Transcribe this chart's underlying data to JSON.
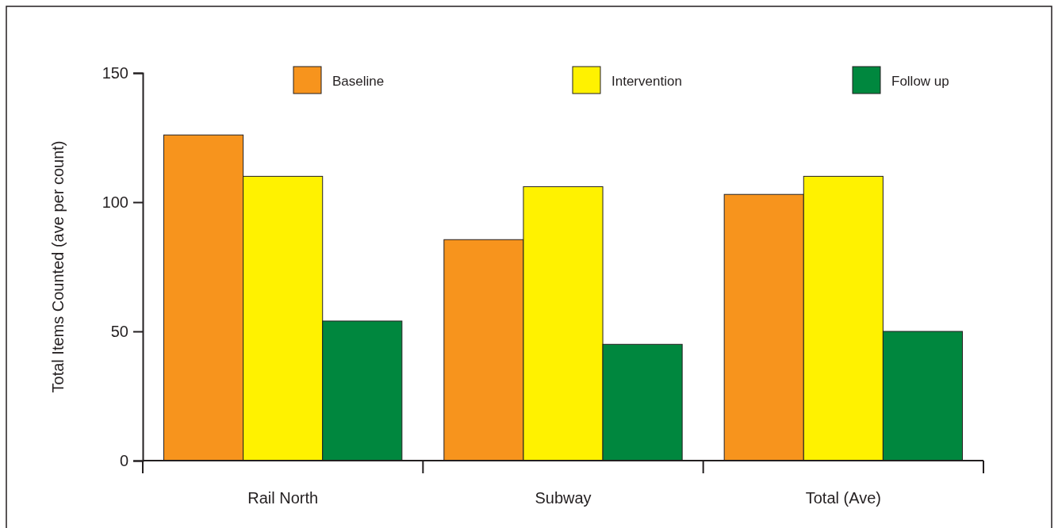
{
  "chart_data": {
    "type": "bar",
    "ylabel": "Total Items Counted (ave per count)",
    "categories": [
      "Rail North",
      "Subway",
      "Total (Ave)"
    ],
    "series": [
      {
        "name": "Baseline",
        "color": "#f7941d",
        "values": [
          126,
          85.5,
          103
        ]
      },
      {
        "name": "Intervention",
        "color": "#fff200",
        "values": [
          110,
          106,
          110
        ]
      },
      {
        "name": "Follow up",
        "color": "#00873e",
        "values": [
          54,
          45,
          50
        ]
      }
    ],
    "ylim": [
      0,
      150
    ],
    "yticks": [
      0,
      50,
      100,
      150
    ],
    "grid": false,
    "legend": "top"
  }
}
